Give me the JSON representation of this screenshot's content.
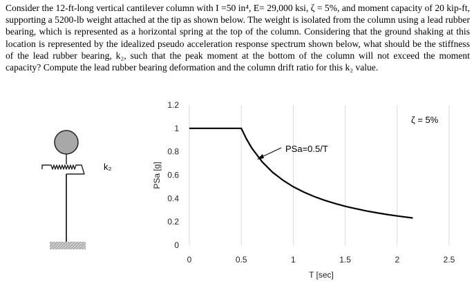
{
  "problem": {
    "text": "Consider the 12-ft-long vertical cantilever column with I =50 in⁴, E= 29,000 ksi, ζ = 5%, and moment capacity of 20 kip-ft, supporting a 5200-lb weight attached at the tip as shown below. The weight is isolated from the column using a lead rubber bearing, which is represented as a horizontal spring at the top of the column. Considering that the ground shaking at this location is represented by the idealized pseudo acceleration response spectrum shown below, what should be the stiffness of the lead rubber bearing, k₂, such that the peak moment at the bottom of the column will not exceed the moment capacity? Compute the lead rubber bearing deformation and the column drift ratio for this k₂ value."
  },
  "column_sketch": {
    "spring_label": "k₂"
  },
  "chart_data": {
    "type": "line",
    "title": "",
    "xlabel": "T [sec]",
    "ylabel": "PSa [g]",
    "xlim": [
      0,
      2.5
    ],
    "ylim": [
      0,
      1.2
    ],
    "x_ticks": [
      "0",
      "0.5",
      "1",
      "1.5",
      "2",
      "2.5"
    ],
    "y_ticks": [
      "0",
      "0.2",
      "0.4",
      "0.6",
      "0.8",
      "1",
      "1.2"
    ],
    "grid": "vertical",
    "series": [
      {
        "name": "PSa",
        "x": [
          0,
          0.5,
          0.55,
          0.6,
          0.7,
          0.8,
          0.9,
          1.0,
          1.1,
          1.2,
          1.3,
          1.4,
          1.5,
          1.6,
          1.7,
          1.8,
          1.9,
          2.0,
          2.15
        ],
        "y": [
          1.0,
          1.0,
          0.909,
          0.833,
          0.714,
          0.625,
          0.556,
          0.5,
          0.455,
          0.417,
          0.385,
          0.357,
          0.333,
          0.3125,
          0.294,
          0.278,
          0.263,
          0.25,
          0.233
        ]
      }
    ],
    "annotations": {
      "curve_label": "PSa=0.5/T",
      "damping_label": "ζ = 5%"
    }
  }
}
